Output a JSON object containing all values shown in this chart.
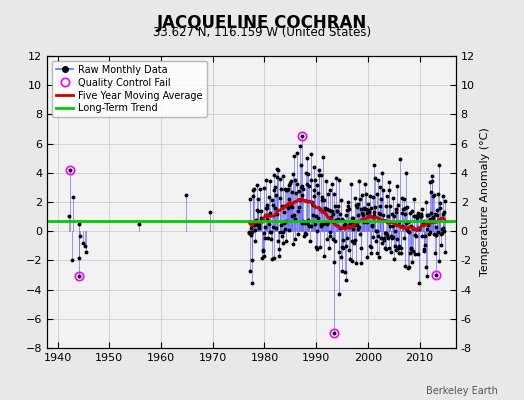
{
  "title": "JACQUELINE COCHRAN",
  "subtitle": "33.627 N, 116.159 W (United States)",
  "ylabel": "Temperature Anomaly (°C)",
  "credit": "Berkeley Earth",
  "xlim": [
    1938,
    2017
  ],
  "ylim": [
    -8,
    12
  ],
  "yticks": [
    -8,
    -6,
    -4,
    -2,
    0,
    2,
    4,
    6,
    8,
    10,
    12
  ],
  "xticks": [
    1940,
    1950,
    1960,
    1970,
    1980,
    1990,
    2000,
    2010
  ],
  "bg_color": "#e8e8e8",
  "plot_bg_color": "#f2f2f2",
  "line_color": "#6666ff",
  "dot_color": "#000000",
  "moving_avg_color": "#cc0000",
  "trend_color": "#00cc00",
  "qc_fail_color": "#ff00ff",
  "seed": 12345
}
